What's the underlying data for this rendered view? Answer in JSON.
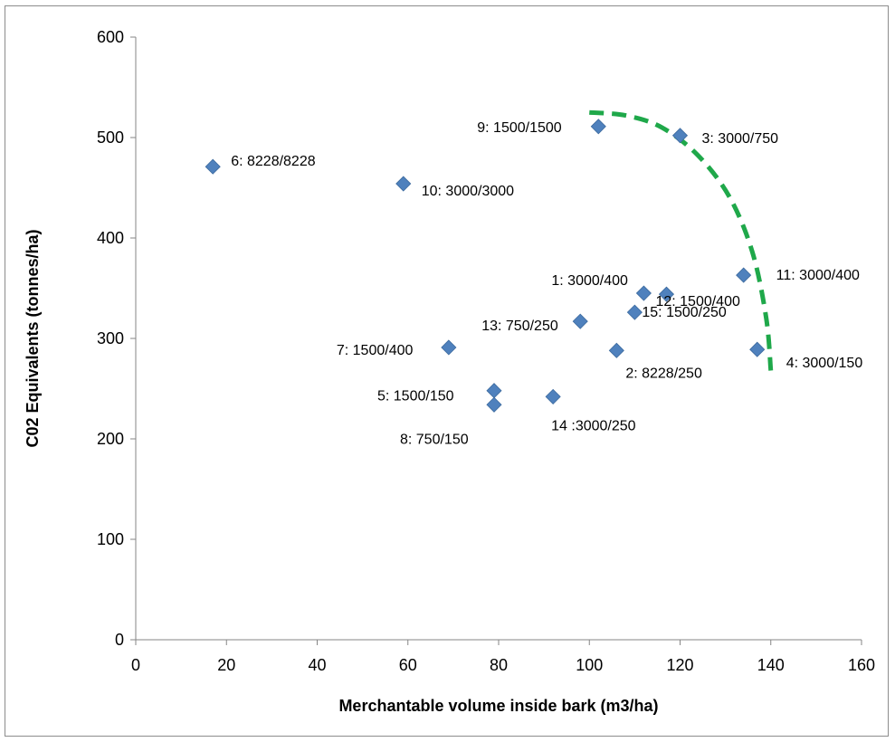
{
  "chart_data": {
    "type": "scatter",
    "title": "",
    "xlabel": "Merchantable volume inside bark (m3/ha)",
    "ylabel": "C02 Equivalents (tonnes/ha)",
    "xlim": [
      0,
      160
    ],
    "ylim": [
      0,
      600
    ],
    "xticks": [
      0,
      20,
      40,
      60,
      80,
      100,
      120,
      140,
      160
    ],
    "yticks": [
      0,
      100,
      200,
      300,
      400,
      500,
      600
    ],
    "grid": false,
    "legend": "none",
    "marker_color": "#4f81bd",
    "frontier_color": "#1fa84a",
    "points": [
      {
        "label": "1: 3000/400",
        "x": 112,
        "y": 345
      },
      {
        "label": "2: 8228/250",
        "x": 106,
        "y": 288
      },
      {
        "label": "3: 3000/750",
        "x": 120,
        "y": 502
      },
      {
        "label": "4: 3000/150",
        "x": 137,
        "y": 289
      },
      {
        "label": "5: 1500/150",
        "x": 79,
        "y": 248
      },
      {
        "label": "6: 8228/8228",
        "x": 17,
        "y": 471
      },
      {
        "label": "7: 1500/400",
        "x": 69,
        "y": 291
      },
      {
        "label": "8: 750/150",
        "x": 79,
        "y": 234
      },
      {
        "label": "9: 1500/1500",
        "x": 102,
        "y": 511
      },
      {
        "label": "10: 3000/3000",
        "x": 59,
        "y": 454
      },
      {
        "label": "11: 3000/400",
        "x": 134,
        "y": 363
      },
      {
        "label": "12: 1500/400",
        "x": 117,
        "y": 344
      },
      {
        "label": "13: 750/250",
        "x": 98,
        "y": 317
      },
      {
        "label": "14 :3000/250",
        "x": 92,
        "y": 242
      },
      {
        "label": "15: 1500/250",
        "x": 110,
        "y": 326
      }
    ],
    "frontier": [
      {
        "x": 100,
        "y": 525
      },
      {
        "x": 108,
        "y": 522
      },
      {
        "x": 116,
        "y": 510
      },
      {
        "x": 124,
        "y": 482
      },
      {
        "x": 131,
        "y": 440
      },
      {
        "x": 136,
        "y": 385
      },
      {
        "x": 139,
        "y": 320
      },
      {
        "x": 140,
        "y": 268
      }
    ]
  }
}
